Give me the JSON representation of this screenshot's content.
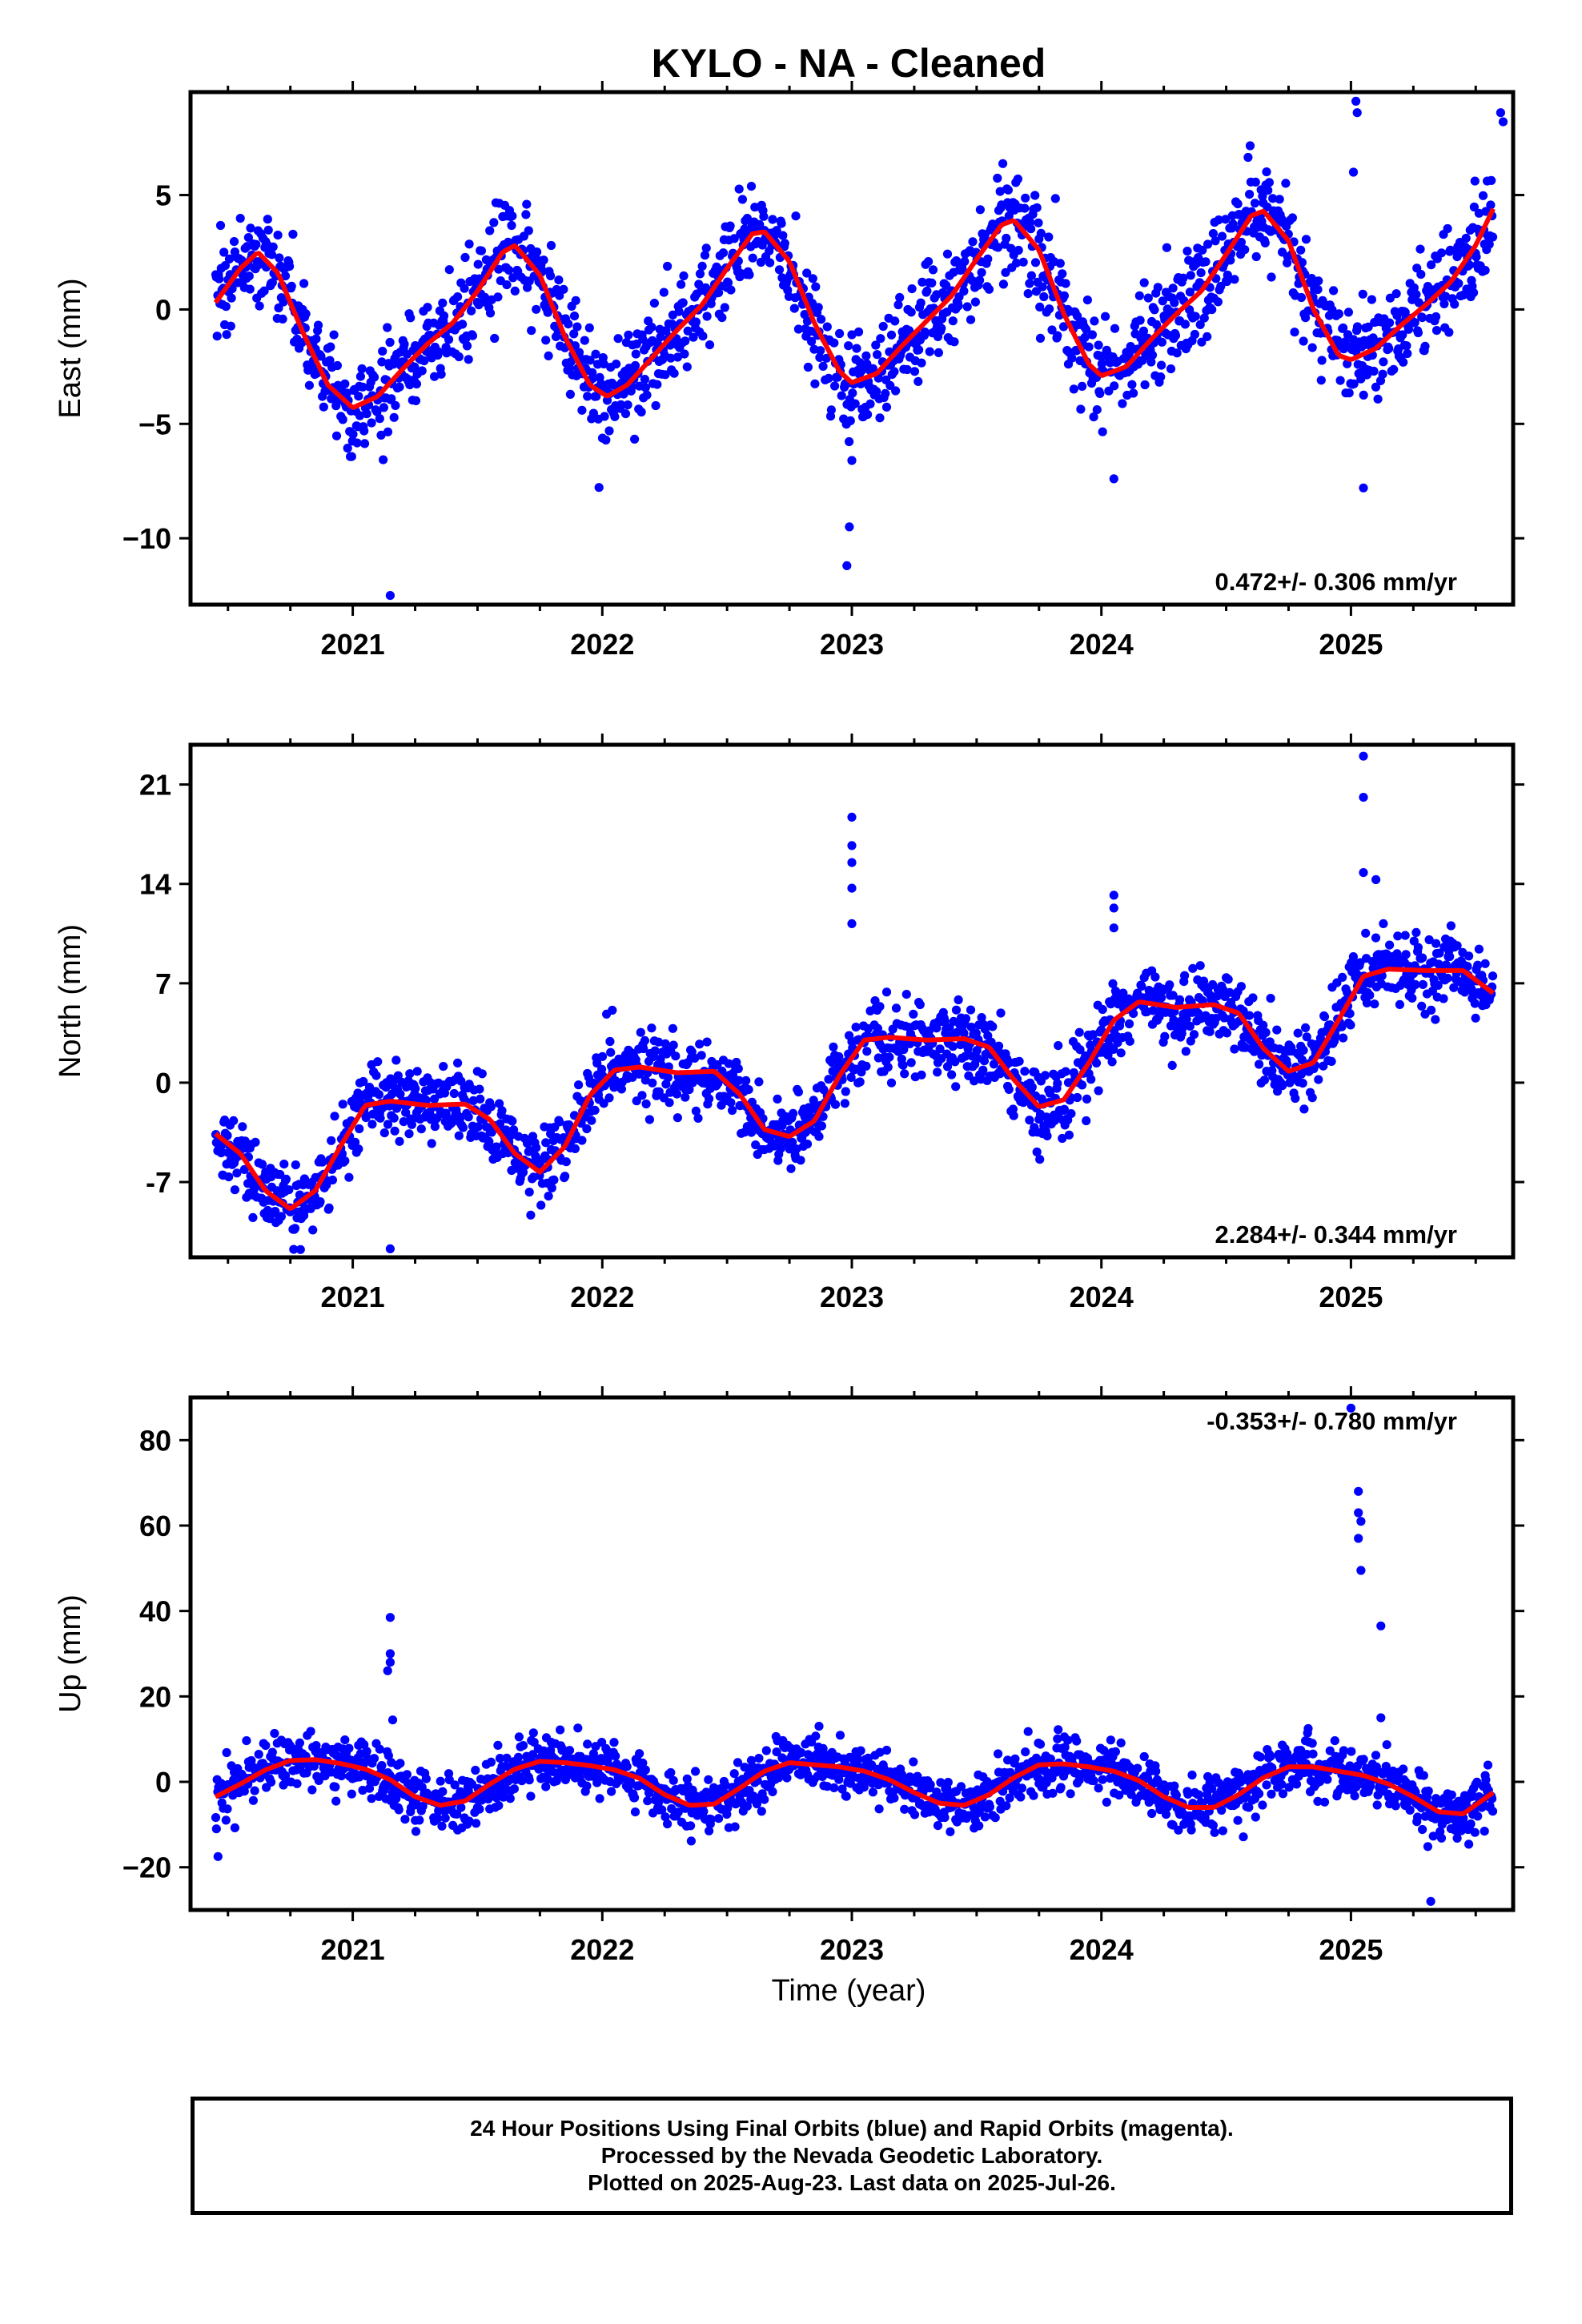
{
  "title": "KYLO  - NA - Cleaned",
  "colors": {
    "points": "#0000ff",
    "fit": "#ff0000",
    "rapid": "#ff00ff",
    "axes": "#000000"
  },
  "footer": {
    "line1": "24 Hour Positions Using Final Orbits (blue) and Rapid Orbits (magenta).",
    "line2": "Processed by the Nevada Geodetic Laboratory.",
    "line3": "Plotted on 2025-Aug-23. Last data on 2025-Jul-26."
  },
  "chart_data": [
    {
      "type": "scatter",
      "component": "east",
      "ylabel": "East (mm)",
      "xlabel": "",
      "xlim": [
        2020.35,
        2025.65
      ],
      "ylim": [
        -12.9,
        9.5
      ],
      "yticks": [
        5,
        0,
        -5,
        -10
      ],
      "ytick_labels": [
        "5",
        "0",
        "−5",
        "−10"
      ],
      "xticks": [
        2021,
        2022,
        2023,
        2024,
        2025
      ],
      "xtick_labels": [
        "2021",
        "2022",
        "2023",
        "2024",
        "2025"
      ],
      "rate_label": "0.472+/- 0.306 mm/yr",
      "rate_position": "bottom-right",
      "grid": false,
      "fit": {
        "x": [
          2020.45,
          2020.55,
          2020.62,
          2020.7,
          2020.8,
          2020.9,
          2021.0,
          2021.1,
          2021.2,
          2021.3,
          2021.4,
          2021.5,
          2021.6,
          2021.65,
          2021.75,
          2021.85,
          2021.95,
          2022.02,
          2022.1,
          2022.2,
          2022.3,
          2022.4,
          2022.5,
          2022.6,
          2022.65,
          2022.75,
          2022.85,
          2022.95,
          2023.0,
          2023.1,
          2023.2,
          2023.3,
          2023.4,
          2023.5,
          2023.6,
          2023.65,
          2023.75,
          2023.85,
          2023.95,
          2024.0,
          2024.1,
          2024.2,
          2024.3,
          2024.4,
          2024.5,
          2024.6,
          2024.65,
          2024.75,
          2024.85,
          2024.95,
          2025.0,
          2025.1,
          2025.2,
          2025.3,
          2025.4,
          2025.5,
          2025.57
        ],
        "y": [
          0.3,
          1.8,
          2.5,
          1.6,
          -1.0,
          -3.3,
          -4.3,
          -3.8,
          -2.6,
          -1.5,
          -0.6,
          0.8,
          2.5,
          2.8,
          1.5,
          -1.2,
          -3.3,
          -3.8,
          -3.3,
          -2.1,
          -0.9,
          0.2,
          1.8,
          3.3,
          3.4,
          2.1,
          -0.6,
          -2.7,
          -3.2,
          -2.8,
          -1.6,
          -0.5,
          0.6,
          2.2,
          3.7,
          3.9,
          2.6,
          -0.2,
          -2.4,
          -2.9,
          -2.5,
          -1.3,
          -0.2,
          0.8,
          2.4,
          4.1,
          4.3,
          3.0,
          0.0,
          -2.0,
          -2.2,
          -1.7,
          -0.7,
          0.2,
          1.2,
          2.8,
          4.4
        ]
      },
      "outliers": {
        "x": [
          2021.15,
          2022.98,
          2022.99,
          2023.0,
          2025.02,
          2025.025,
          2025.01,
          2025.05,
          2024.05,
          2025.6,
          2025.61
        ],
        "y": [
          -12.5,
          -11.2,
          -9.5,
          -6.6,
          9.1,
          8.6,
          6.0,
          -7.8,
          -7.4,
          8.6,
          8.2
        ]
      },
      "noise_mm": 1.1
    },
    {
      "type": "scatter",
      "component": "north",
      "ylabel": "North (mm)",
      "xlabel": "",
      "xlim": [
        2020.35,
        2025.65
      ],
      "ylim": [
        -12.3,
        23.8
      ],
      "yticks": [
        21,
        14,
        7,
        0,
        -7
      ],
      "ytick_labels": [
        "21",
        "14",
        "7",
        "0",
        "-7"
      ],
      "xticks": [
        2021,
        2022,
        2023,
        2024,
        2025
      ],
      "xtick_labels": [
        "2021",
        "2022",
        "2023",
        "2024",
        "2025"
      ],
      "rate_label": "2.284+/- 0.344 mm/yr",
      "rate_position": "bottom-right",
      "grid": false,
      "fit": {
        "x": [
          2020.45,
          2020.55,
          2020.65,
          2020.75,
          2020.85,
          2020.95,
          2021.05,
          2021.15,
          2021.3,
          2021.45,
          2021.55,
          2021.65,
          2021.75,
          2021.85,
          2021.95,
          2022.05,
          2022.15,
          2022.3,
          2022.45,
          2022.55,
          2022.65,
          2022.75,
          2022.85,
          2022.95,
          2023.05,
          2023.15,
          2023.3,
          2023.45,
          2023.55,
          2023.65,
          2023.75,
          2023.85,
          2023.95,
          2024.05,
          2024.15,
          2024.3,
          2024.45,
          2024.55,
          2024.65,
          2024.75,
          2024.85,
          2024.95,
          2025.05,
          2025.15,
          2025.3,
          2025.45,
          2025.57
        ],
        "y": [
          -3.6,
          -5.0,
          -7.6,
          -8.9,
          -7.6,
          -4.5,
          -1.6,
          -1.3,
          -1.6,
          -1.5,
          -2.6,
          -5.0,
          -6.3,
          -4.5,
          -0.9,
          0.9,
          1.1,
          0.7,
          0.8,
          -0.8,
          -3.3,
          -3.8,
          -2.7,
          0.5,
          3.0,
          3.2,
          3.0,
          3.1,
          2.5,
          0.2,
          -1.7,
          -1.2,
          1.4,
          4.4,
          5.7,
          5.3,
          5.5,
          4.9,
          2.4,
          0.8,
          1.4,
          4.4,
          7.5,
          8.0,
          7.9,
          7.9,
          6.3
        ]
      },
      "outliers": {
        "x": [
          2023.0,
          2023.0,
          2023.0,
          2023.0,
          2023.0,
          2024.05,
          2024.05,
          2024.05,
          2025.05,
          2025.05,
          2025.05,
          2025.1,
          2021.15,
          2022.04,
          2020.6
        ],
        "y": [
          18.7,
          16.7,
          15.5,
          13.7,
          11.2,
          13.2,
          12.3,
          10.9,
          23.0,
          20.1,
          14.8,
          14.3,
          -11.7,
          5.1,
          -9.5
        ]
      },
      "noise_mm": 1.3
    },
    {
      "type": "scatter",
      "component": "up",
      "ylabel": "Up (mm)",
      "xlabel": "Time (year)",
      "xlim": [
        2020.35,
        2025.65
      ],
      "ylim": [
        -30,
        90
      ],
      "yticks": [
        80,
        60,
        40,
        20,
        0,
        -20
      ],
      "ytick_labels": [
        "80",
        "60",
        "40",
        "20",
        "0",
        "−20"
      ],
      "xticks": [
        2021,
        2022,
        2023,
        2024,
        2025
      ],
      "xtick_labels": [
        "2021",
        "2022",
        "2023",
        "2024",
        "2025"
      ],
      "rate_label": "-0.353+/- 0.780 mm/yr",
      "rate_position": "top-right",
      "grid": false,
      "fit": {
        "x": [
          2020.45,
          2020.55,
          2020.65,
          2020.75,
          2020.85,
          2020.95,
          2021.05,
          2021.15,
          2021.25,
          2021.35,
          2021.45,
          2021.55,
          2021.65,
          2021.75,
          2021.85,
          2021.95,
          2022.05,
          2022.15,
          2022.25,
          2022.35,
          2022.45,
          2022.55,
          2022.65,
          2022.75,
          2022.85,
          2022.95,
          2023.05,
          2023.15,
          2023.25,
          2023.35,
          2023.45,
          2023.55,
          2023.65,
          2023.75,
          2023.85,
          2023.95,
          2024.05,
          2024.15,
          2024.25,
          2024.35,
          2024.45,
          2024.55,
          2024.65,
          2024.75,
          2024.85,
          2024.95,
          2025.05,
          2025.15,
          2025.25,
          2025.35,
          2025.45,
          2025.57
        ],
        "y": [
          -3.5,
          -0.5,
          2.8,
          5.0,
          5.2,
          4.3,
          3.0,
          0.5,
          -3.5,
          -5.5,
          -4.5,
          -0.5,
          3.0,
          4.8,
          4.5,
          3.8,
          2.8,
          0.8,
          -3.0,
          -5.5,
          -5.2,
          -1.5,
          2.5,
          4.5,
          4.0,
          3.5,
          2.5,
          0.5,
          -2.5,
          -5.0,
          -5.5,
          -3.0,
          1.0,
          4.0,
          4.2,
          3.5,
          2.5,
          0.3,
          -3.5,
          -6.0,
          -6.0,
          -3.0,
          1.0,
          3.5,
          3.5,
          2.5,
          1.5,
          -0.5,
          -3.5,
          -7.0,
          -7.5,
          -2.5
        ]
      },
      "outliers": {
        "x": [
          2021.15,
          2021.15,
          2021.15,
          2021.14,
          2021.16,
          2025.03,
          2025.03,
          2025.04,
          2025.03,
          2025.04,
          2025.12,
          2025.12,
          2025.32,
          2020.46,
          2025.0
        ],
        "y": [
          38.5,
          30.0,
          28.0,
          26.0,
          14.5,
          68.0,
          63.0,
          61.0,
          57.0,
          49.5,
          36.5,
          15.0,
          -28.0,
          -17.5,
          87.5
        ]
      },
      "noise_mm": 3.2
    }
  ]
}
